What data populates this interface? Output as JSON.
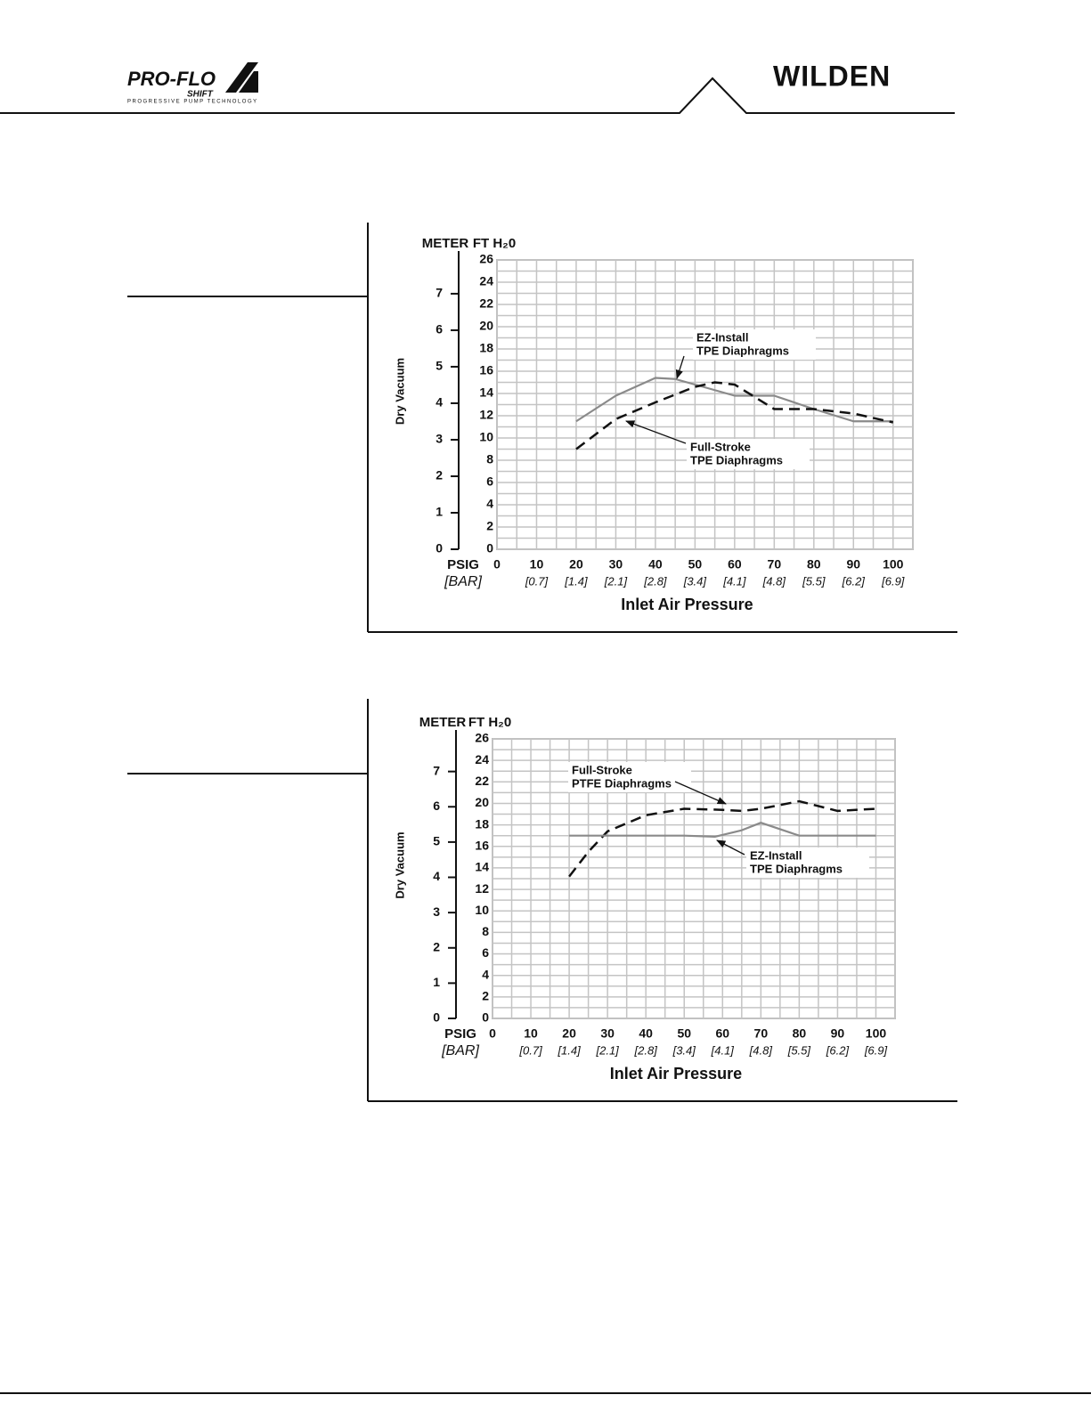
{
  "header": {
    "left_logo": "PRO-FLO",
    "left_logo_sub": "SHIFT",
    "tagline": "PROGRESSIVE PUMP TECHNOLOGY",
    "right_logo": "WILDEN"
  },
  "chart_data": [
    {
      "type": "line",
      "y_label": "Dry Vacuum",
      "x_label": "Inlet Air Pressure",
      "y_unit": "FT H₂0",
      "y2_unit": "METER",
      "x_unit": "PSIG",
      "x2_unit": "[BAR]",
      "xlim": [
        0,
        105
      ],
      "xticks": [
        0,
        10,
        20,
        30,
        40,
        50,
        60,
        70,
        80,
        90,
        100
      ],
      "x2ticks": [
        {
          "value": 10,
          "label": "[0.7]"
        },
        {
          "value": 20,
          "label": "[1.4]"
        },
        {
          "value": 30,
          "label": "[2.1]"
        },
        {
          "value": 40,
          "label": "[2.8]"
        },
        {
          "value": 50,
          "label": "[3.4]"
        },
        {
          "value": 60,
          "label": "[4.1]"
        },
        {
          "value": 70,
          "label": "[4.8]"
        },
        {
          "value": 80,
          "label": "[5.5]"
        },
        {
          "value": 90,
          "label": "[6.2]"
        },
        {
          "value": 100,
          "label": "[6.9]"
        }
      ],
      "ylim": [
        0,
        26
      ],
      "yticks": [
        0,
        2,
        4,
        6,
        8,
        10,
        12,
        14,
        16,
        18,
        20,
        22,
        24,
        26
      ],
      "y2lim": [
        0,
        7.925
      ],
      "y2ticks": [
        0,
        1,
        2,
        3,
        4,
        5,
        6,
        7
      ],
      "xgrid": [
        0,
        5,
        10,
        15,
        20,
        25,
        30,
        35,
        40,
        45,
        50,
        55,
        60,
        65,
        70,
        75,
        80,
        85,
        90,
        95,
        100,
        105
      ],
      "ygrid": [
        0,
        1,
        2,
        3,
        4,
        5,
        6,
        7,
        8,
        9,
        10,
        11,
        12,
        13,
        14,
        15,
        16,
        17,
        18,
        19,
        20,
        21,
        22,
        23,
        24,
        25,
        26
      ],
      "series": [
        {
          "label": [
            "EZ-Install",
            "TPE Diaphragms"
          ],
          "color": "#8a8a8a",
          "style": "solid",
          "x": [
            20,
            30,
            40,
            45,
            50,
            60,
            70,
            80,
            90,
            100
          ],
          "values": [
            11.5,
            13.8,
            15.4,
            15.3,
            14.8,
            13.8,
            13.8,
            12.6,
            11.5,
            11.5
          ]
        },
        {
          "label": [
            "Full-Stroke",
            "TPE Diaphragms"
          ],
          "color": "#111111",
          "style": "dashed",
          "x": [
            20,
            30,
            40,
            50,
            55,
            60,
            70,
            80,
            90,
            100
          ],
          "values": [
            9,
            11.7,
            13.2,
            14.6,
            15,
            14.8,
            12.6,
            12.6,
            12.2,
            11.4
          ]
        }
      ]
    },
    {
      "type": "line",
      "y_label": "Dry Vacuum",
      "x_label": "Inlet Air Pressure",
      "y_unit": "FT H₂0",
      "y2_unit": "METER",
      "x_unit": "PSIG",
      "x2_unit": "[BAR]",
      "xlim": [
        0,
        105
      ],
      "xticks": [
        0,
        10,
        20,
        30,
        40,
        50,
        60,
        70,
        80,
        90,
        100
      ],
      "x2ticks": [
        {
          "value": 10,
          "label": "[0.7]"
        },
        {
          "value": 20,
          "label": "[1.4]"
        },
        {
          "value": 30,
          "label": "[2.1]"
        },
        {
          "value": 40,
          "label": "[2.8]"
        },
        {
          "value": 50,
          "label": "[3.4]"
        },
        {
          "value": 60,
          "label": "[4.1]"
        },
        {
          "value": 70,
          "label": "[4.8]"
        },
        {
          "value": 80,
          "label": "[5.5]"
        },
        {
          "value": 90,
          "label": "[6.2]"
        },
        {
          "value": 100,
          "label": "[6.9]"
        }
      ],
      "ylim": [
        0,
        26
      ],
      "yticks": [
        0,
        2,
        4,
        6,
        8,
        10,
        12,
        14,
        16,
        18,
        20,
        22,
        24,
        26
      ],
      "y2lim": [
        0,
        7.925
      ],
      "y2ticks": [
        0,
        1,
        2,
        3,
        4,
        5,
        6,
        7
      ],
      "xgrid": [
        0,
        5,
        10,
        15,
        20,
        25,
        30,
        35,
        40,
        45,
        50,
        55,
        60,
        65,
        70,
        75,
        80,
        85,
        90,
        95,
        100,
        105
      ],
      "ygrid": [
        0,
        1,
        2,
        3,
        4,
        5,
        6,
        7,
        8,
        9,
        10,
        11,
        12,
        13,
        14,
        15,
        16,
        17,
        18,
        19,
        20,
        21,
        22,
        23,
        24,
        25,
        26
      ],
      "series": [
        {
          "label": [
            "Full-Stroke",
            "PTFE Diaphragms"
          ],
          "color": "#111111",
          "style": "dashed",
          "x": [
            20,
            25,
            30,
            40,
            50,
            60,
            65,
            70,
            80,
            90,
            100
          ],
          "values": [
            13.2,
            15.5,
            17.4,
            18.9,
            19.5,
            19.4,
            19.3,
            19.5,
            20.2,
            19.3,
            19.5
          ]
        },
        {
          "label": [
            "EZ-Install",
            "TPE Diaphragms"
          ],
          "color": "#8a8a8a",
          "style": "solid",
          "x": [
            20,
            30,
            40,
            50,
            58,
            65,
            70,
            80,
            90,
            100
          ],
          "values": [
            17,
            17,
            17,
            17,
            16.9,
            17.5,
            18.2,
            17,
            17,
            17
          ]
        }
      ]
    }
  ]
}
